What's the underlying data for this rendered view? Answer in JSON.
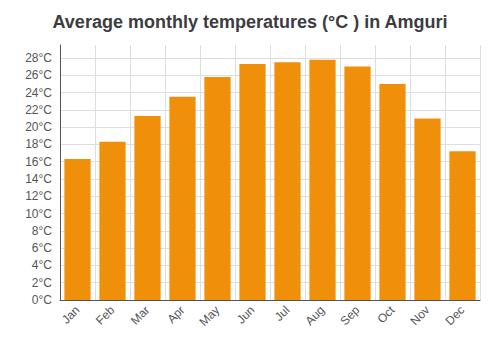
{
  "chart_data": {
    "type": "bar",
    "title": "Average monthly temperatures (°C ) in Amguri",
    "categories": [
      "Jan",
      "Feb",
      "Mar",
      "Apr",
      "May",
      "Jun",
      "Jul",
      "Aug",
      "Sep",
      "Oct",
      "Nov",
      "Dec"
    ],
    "values": [
      16.3,
      18.3,
      21.3,
      23.5,
      25.8,
      27.3,
      27.5,
      27.8,
      27.0,
      25.0,
      21.0,
      17.2
    ],
    "color": "#F0900A",
    "ylim": [
      0,
      29.5
    ],
    "yticks": [
      {
        "value": 0,
        "label": "0°C"
      },
      {
        "value": 2,
        "label": "2°C"
      },
      {
        "value": 4,
        "label": "4°C"
      },
      {
        "value": 6,
        "label": "6°C"
      },
      {
        "value": 8,
        "label": "8°C"
      },
      {
        "value": 10,
        "label": "10°C"
      },
      {
        "value": 12,
        "label": "12°C"
      },
      {
        "value": 14,
        "label": "14°C"
      },
      {
        "value": 16,
        "label": "16°C"
      },
      {
        "value": 18,
        "label": "18°C"
      },
      {
        "value": 20,
        "label": "20°C"
      },
      {
        "value": 22,
        "label": "22°C"
      },
      {
        "value": 24,
        "label": "24°C"
      },
      {
        "value": 26,
        "label": "26°C"
      },
      {
        "value": 28,
        "label": "28°C"
      }
    ],
    "grid": true
  }
}
